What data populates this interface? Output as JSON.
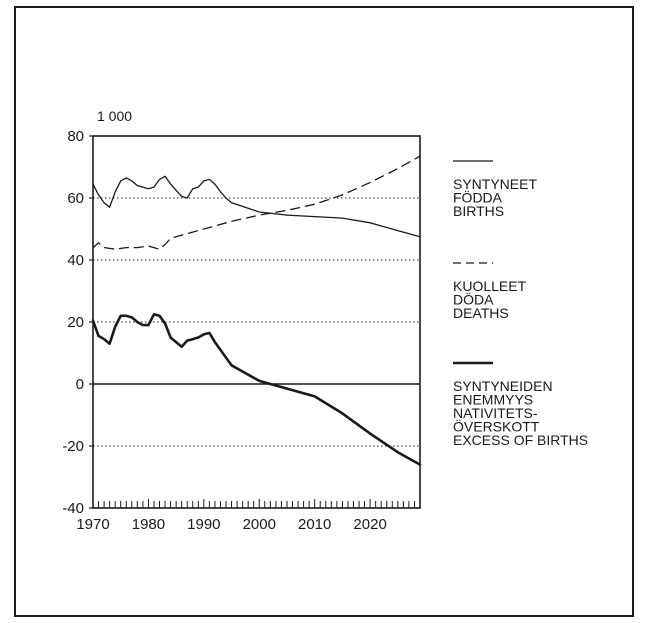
{
  "chart_data": {
    "type": "line",
    "unit_label": "1 000",
    "xlim": [
      1970,
      2029
    ],
    "ylim": [
      -40,
      80
    ],
    "x_ticks": [
      1970,
      1980,
      1990,
      2000,
      2010,
      2020
    ],
    "y_ticks": [
      80,
      60,
      40,
      20,
      0,
      -20,
      -40
    ],
    "grid": "dotted horizontal lines at 60, 40, 20, -20; solid line at 0",
    "legend_position": "right",
    "series": [
      {
        "key": "births",
        "name": "SYNTYNEET\nFÖDDA\nBIRTHS",
        "style": "thin-solid",
        "x": [
          1970,
          1971,
          1972,
          1973,
          1974,
          1975,
          1976,
          1977,
          1978,
          1979,
          1980,
          1981,
          1982,
          1983,
          1984,
          1985,
          1986,
          1987,
          1988,
          1989,
          1990,
          1991,
          1992,
          1993,
          1994,
          1995,
          2000,
          2005,
          2010,
          2015,
          2020,
          2025,
          2029
        ],
        "values": [
          64.5,
          61,
          58.5,
          57,
          62,
          65.5,
          66.5,
          65.5,
          64,
          63.5,
          63,
          63.5,
          66,
          67,
          64.5,
          62.5,
          60.5,
          60,
          63,
          63.5,
          65.5,
          66,
          64.5,
          62,
          60,
          58.5,
          55.5,
          54.5,
          54,
          53.5,
          52,
          49.5,
          47.5
        ]
      },
      {
        "key": "deaths",
        "name": "KUOLLEET\nDÖDA\nDEATHS",
        "style": "dashed",
        "x": [
          1970,
          1971,
          1972,
          1974,
          1976,
          1978,
          1980,
          1982,
          1983,
          1984,
          1985,
          1987,
          1990,
          1995,
          2000,
          2005,
          2010,
          2015,
          2020,
          2025,
          2029
        ],
        "values": [
          44,
          45.5,
          44,
          43.5,
          44,
          44,
          44.5,
          43.5,
          45,
          47,
          47.5,
          48.5,
          50,
          52.5,
          54.5,
          56,
          58,
          61,
          65,
          69.5,
          73.5
        ]
      },
      {
        "key": "excess",
        "name": "SYNTYNEIDEN\nENEMMYYS\nNATIVITETS-\nÖVERSKOTT\nEXCESS OF BIRTHS",
        "style": "thick-solid",
        "x": [
          1970,
          1971,
          1972,
          1973,
          1974,
          1975,
          1976,
          1977,
          1978,
          1979,
          1980,
          1981,
          1982,
          1983,
          1984,
          1985,
          1986,
          1987,
          1988,
          1989,
          1990,
          1991,
          1992,
          1993,
          1994,
          1995,
          2000,
          2005,
          2010,
          2015,
          2020,
          2025,
          2029
        ],
        "values": [
          20.5,
          15.5,
          14.5,
          13,
          18.5,
          22,
          22,
          21.5,
          20,
          19,
          19,
          22.5,
          22,
          19.5,
          15,
          13.5,
          12,
          14,
          14.5,
          15,
          16,
          16.5,
          13.5,
          11,
          8.5,
          6,
          1,
          -1.5,
          -4,
          -9.5,
          -16,
          -22,
          -26
        ]
      }
    ]
  }
}
